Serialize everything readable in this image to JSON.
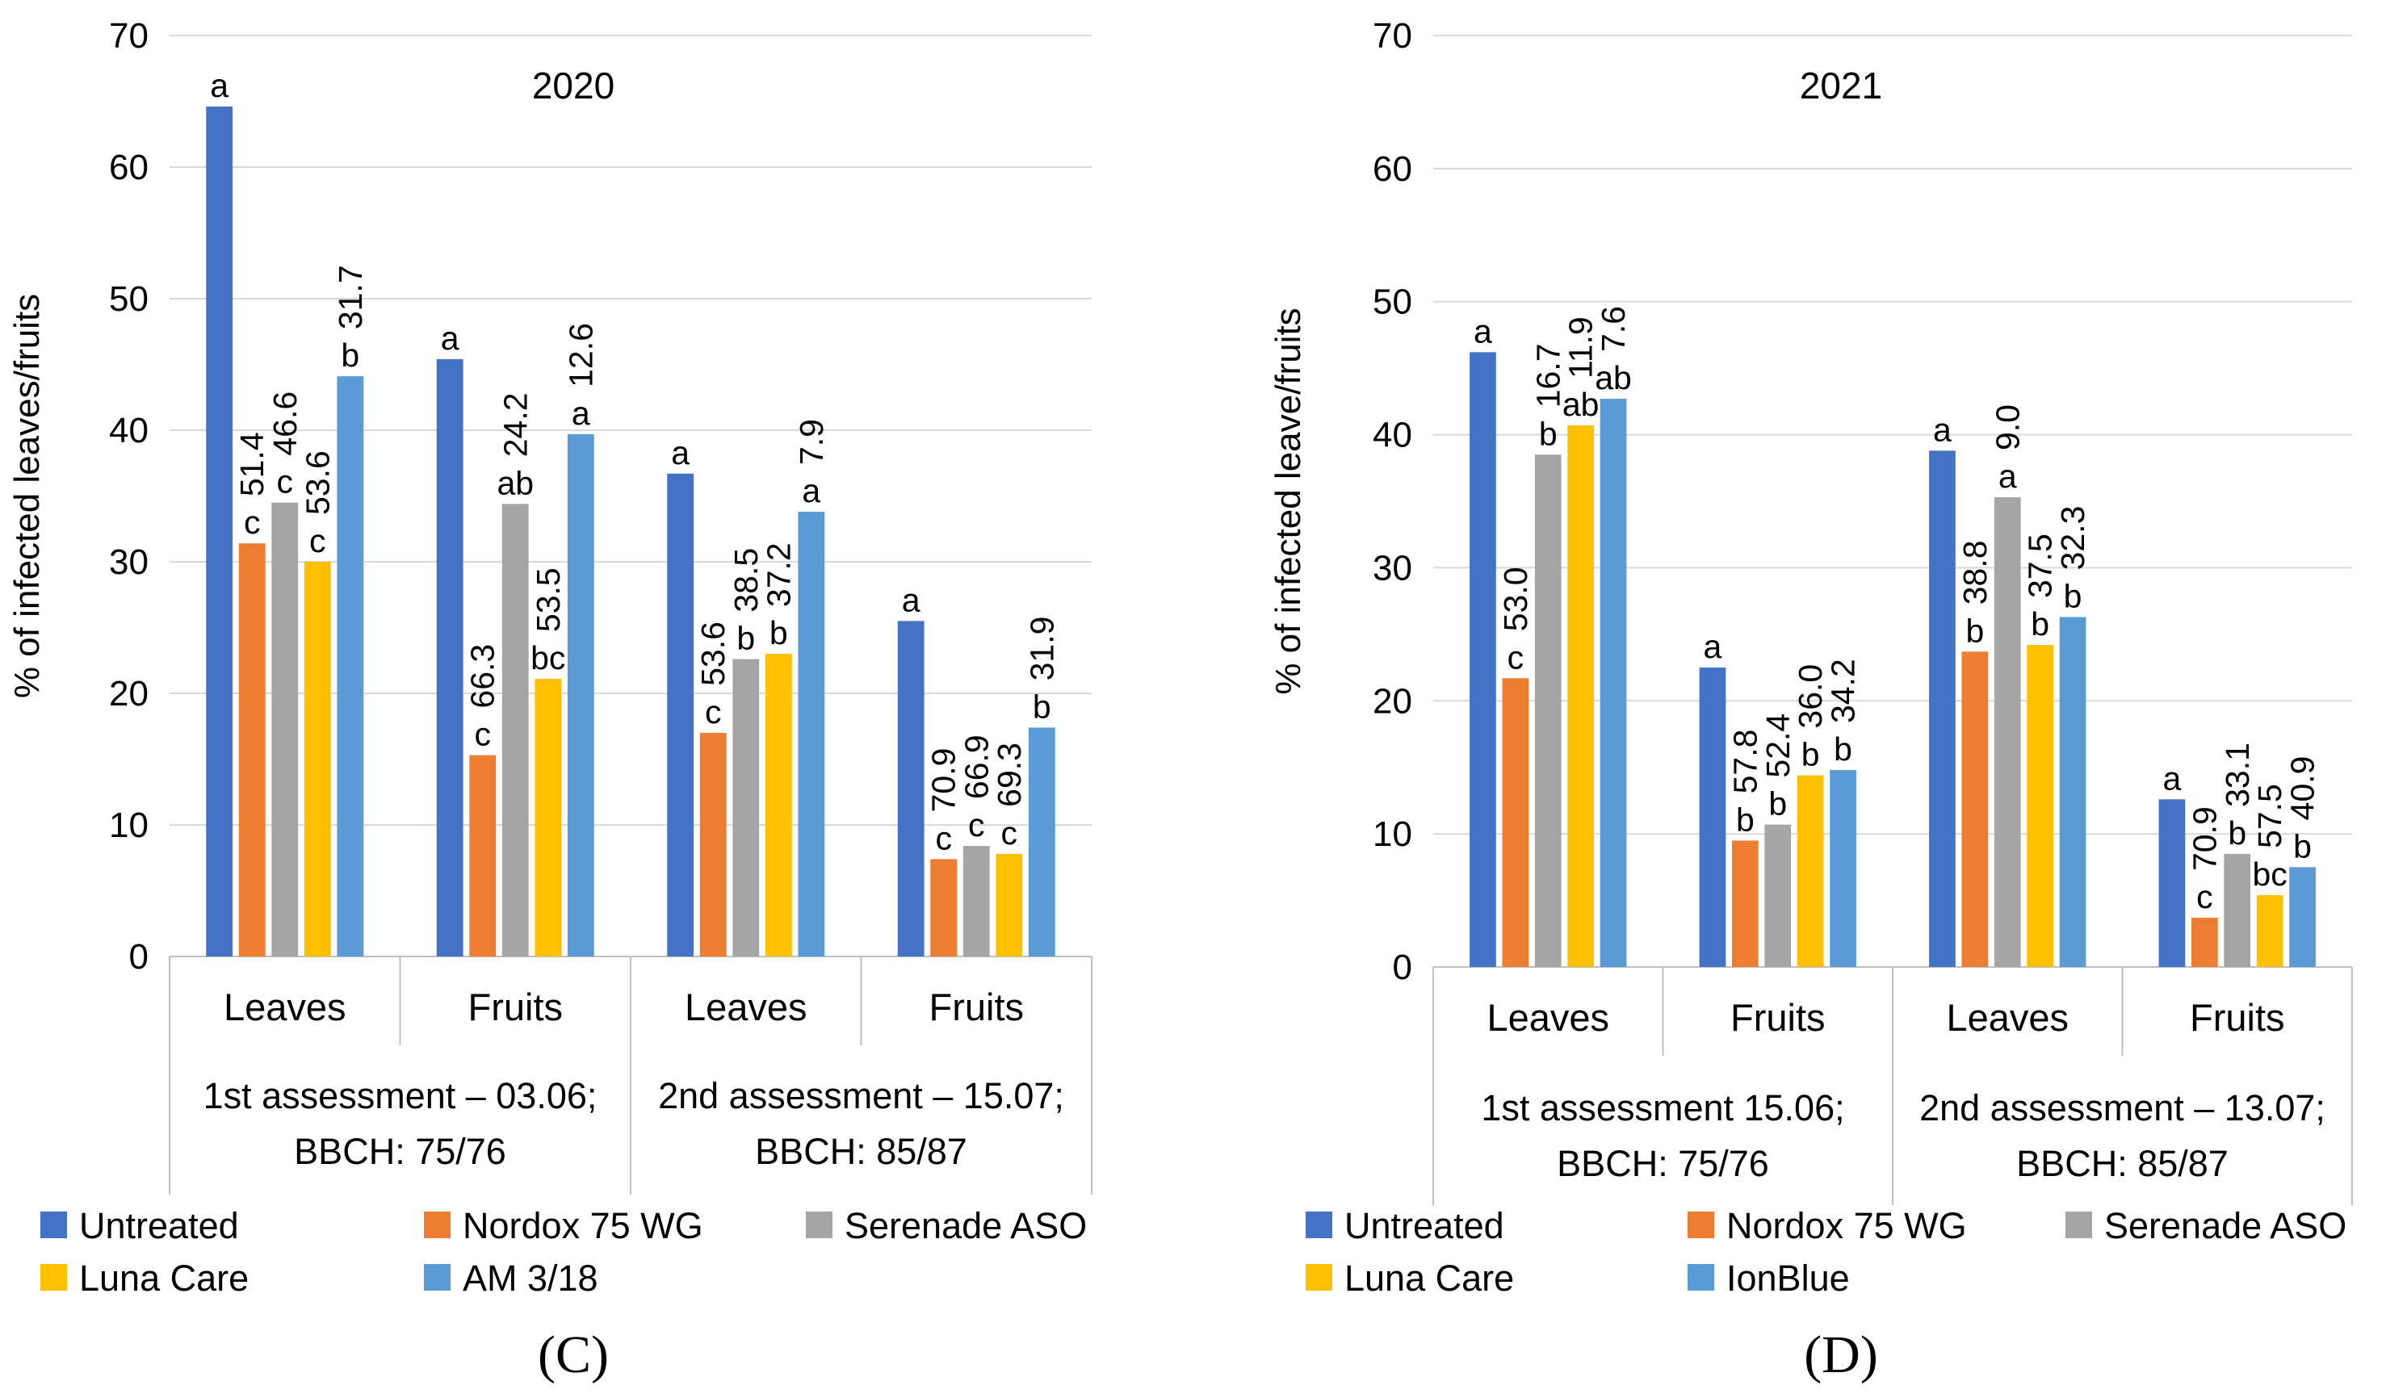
{
  "colors": {
    "Untreated": "#4472C4",
    "Nordox 75 WG": "#ED7D31",
    "Serenade ASO": "#A5A5A5",
    "Luna Care": "#FFC000",
    "AM 3/18": "#5B9BD5",
    "IonBlue": "#5B9BD5"
  },
  "chart_data": [
    {
      "type": "bar",
      "panel_label": "(C)",
      "title": "2020",
      "ylabel": "% of infected leaves/fruits",
      "ylim": [
        0,
        70
      ],
      "yticks": [
        "0",
        "10",
        "20",
        "30",
        "40",
        "50",
        "60",
        "70"
      ],
      "categories": [
        "Leaves",
        "Fruits",
        "Leaves",
        "Fruits"
      ],
      "groups": [
        {
          "label_line1": "1st assessment – 03.06;",
          "label_line2": "BBCH: 75/76"
        },
        {
          "label_line1": "2nd assessment – 15.07;",
          "label_line2": "BBCH: 85/87"
        }
      ],
      "series": [
        {
          "name": "Untreated",
          "values": [
            64.6,
            45.4,
            36.7,
            25.5
          ],
          "letters": [
            "a",
            "a",
            "a",
            "a"
          ],
          "efficacy": [
            "",
            "",
            "",
            ""
          ]
        },
        {
          "name": "Nordox 75 WG",
          "values": [
            31.4,
            15.3,
            17.0,
            7.4
          ],
          "letters": [
            "c",
            "c",
            "c",
            "c"
          ],
          "efficacy": [
            "51.4",
            "66.3",
            "53.6",
            "70.9"
          ]
        },
        {
          "name": "Serenade ASO",
          "values": [
            34.5,
            34.4,
            22.6,
            8.4
          ],
          "letters": [
            "c",
            "ab",
            "b",
            "c"
          ],
          "efficacy": [
            "46.6",
            "24.2",
            "38.5",
            "66.9"
          ]
        },
        {
          "name": "Luna Care",
          "values": [
            30.0,
            21.1,
            23.0,
            7.8
          ],
          "letters": [
            "c",
            "bc",
            "b",
            "c"
          ],
          "efficacy": [
            "53.6",
            "53.5",
            "37.2",
            "69.3"
          ]
        },
        {
          "name": "AM 3/18",
          "values": [
            44.1,
            39.7,
            33.8,
            17.4
          ],
          "letters": [
            "b",
            "a",
            "a",
            "b"
          ],
          "efficacy": [
            "31.7",
            "12.6",
            "7.9",
            "31.9"
          ]
        }
      ],
      "legend": [
        "Untreated",
        "Nordox 75 WG",
        "Serenade ASO",
        "Luna Care",
        "AM 3/18"
      ]
    },
    {
      "type": "bar",
      "panel_label": "(D)",
      "title": "2021",
      "ylabel": "% of infected leave/fruits",
      "ylim": [
        0,
        70
      ],
      "yticks": [
        "0",
        "10",
        "20",
        "30",
        "40",
        "50",
        "60",
        "70"
      ],
      "categories": [
        "Leaves",
        "Fruits",
        "Leaves",
        "Fruits"
      ],
      "groups": [
        {
          "label_line1": "1st assessment  15.06;",
          "label_line2": "BBCH: 75/76"
        },
        {
          "label_line1": "2nd assessment – 13.07;",
          "label_line2": "BBCH: 85/87"
        }
      ],
      "series": [
        {
          "name": "Untreated",
          "values": [
            46.2,
            22.5,
            38.8,
            12.6
          ],
          "letters": [
            "a",
            "a",
            "a",
            "a"
          ],
          "efficacy": [
            "",
            "",
            "",
            ""
          ]
        },
        {
          "name": "Nordox 75 WG",
          "values": [
            21.7,
            9.5,
            23.7,
            3.7
          ],
          "letters": [
            "c",
            "b",
            "b",
            "c"
          ],
          "efficacy": [
            "53.0",
            "57.8",
            "38.8",
            "70.9"
          ]
        },
        {
          "name": "Serenade ASO",
          "values": [
            38.5,
            10.7,
            35.3,
            8.5
          ],
          "letters": [
            "b",
            "b",
            "a",
            "b"
          ],
          "efficacy": [
            "16.7",
            "52.4",
            "9.0",
            "33.1"
          ]
        },
        {
          "name": "Luna Care",
          "values": [
            40.7,
            14.4,
            24.2,
            5.4
          ],
          "letters": [
            "ab",
            "b",
            "b",
            "bc"
          ],
          "efficacy": [
            "11.9",
            "36.0",
            "37.5",
            "57.5"
          ]
        },
        {
          "name": "IonBlue",
          "values": [
            42.7,
            14.8,
            26.3,
            7.5
          ],
          "letters": [
            "ab",
            "b",
            "b",
            "b"
          ],
          "efficacy": [
            "7.6",
            "34.2",
            "32.3",
            "40.9"
          ]
        }
      ],
      "legend": [
        "Untreated",
        "Nordox 75 WG",
        "Serenade ASO",
        "Luna Care",
        "IonBlue"
      ]
    }
  ]
}
